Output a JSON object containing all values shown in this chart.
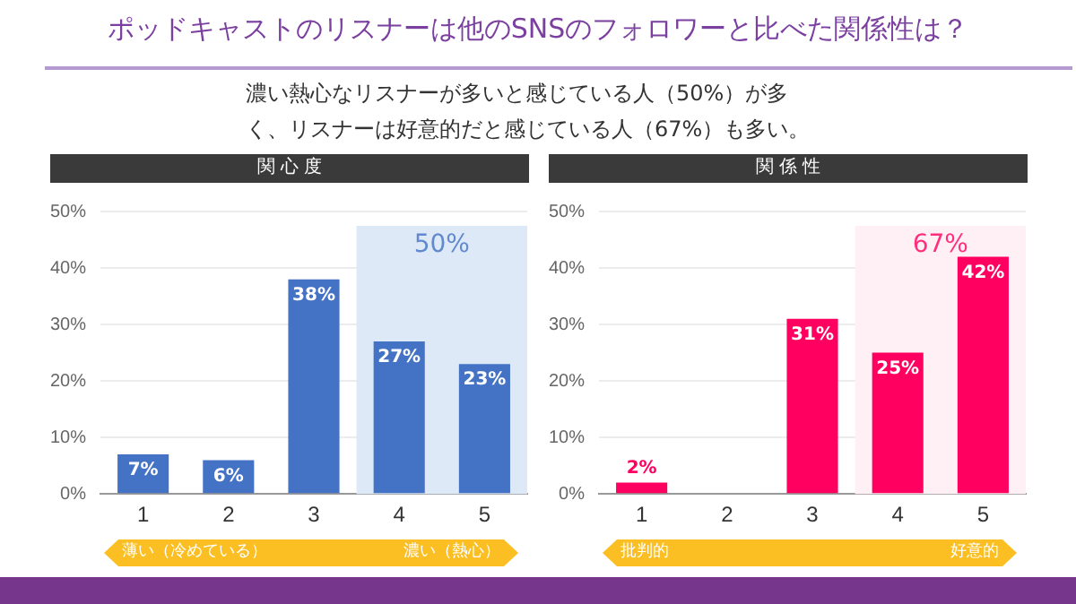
{
  "chart_data": [
    {
      "type": "other",
      "title": "ポッドキャストのリスナーは他のSNSのフォロワーと比べた関係性は？",
      "subtitle": "濃い熱心なリスナーが多いと感じている人（50%）が多く、リスナーは好意的だと感じている人（67%）も多い。"
    },
    {
      "type": "bar",
      "title": "関 心 度",
      "categories": [
        "1",
        "2",
        "3",
        "4",
        "5"
      ],
      "values": [
        7,
        6,
        38,
        27,
        23
      ],
      "color": "#4472c4",
      "value_labels": [
        "7%",
        "6%",
        "38%",
        "27%",
        "23%"
      ],
      "ylim": [
        0,
        50
      ],
      "yticks": [
        {
          "value": 0,
          "label": "0%"
        },
        {
          "value": 10,
          "label": "10%"
        },
        {
          "value": 20,
          "label": "20%"
        },
        {
          "value": 30,
          "label": "30%"
        },
        {
          "value": 40,
          "label": "40%"
        },
        {
          "value": 50,
          "label": "50%"
        }
      ],
      "grid": "y",
      "bands": [
        {
          "axis": "x",
          "from": "4",
          "to": "5",
          "label": "50%",
          "color": "#dde9f6"
        }
      ],
      "annotations": [
        "薄い（冷めている）",
        "濃い（熱心）"
      ]
    },
    {
      "type": "bar",
      "title": "関 係 性",
      "categories": [
        "1",
        "2",
        "3",
        "4",
        "5"
      ],
      "values": [
        2,
        0,
        31,
        25,
        42
      ],
      "color": "#ff0060",
      "value_labels": [
        "2%",
        null,
        "31%",
        "25%",
        "42%"
      ],
      "ylim": [
        0,
        50
      ],
      "yticks": [
        {
          "value": 0,
          "label": "0%"
        },
        {
          "value": 10,
          "label": "10%"
        },
        {
          "value": 20,
          "label": "20%"
        },
        {
          "value": 30,
          "label": "30%"
        },
        {
          "value": 40,
          "label": "40%"
        },
        {
          "value": 50,
          "label": "50%"
        }
      ],
      "grid": "y",
      "bands": [
        {
          "axis": "x",
          "from": "4",
          "to": "5",
          "label": "67%",
          "color": "#fff0f5"
        }
      ],
      "annotations": [
        "批判的",
        "好意的"
      ]
    }
  ]
}
